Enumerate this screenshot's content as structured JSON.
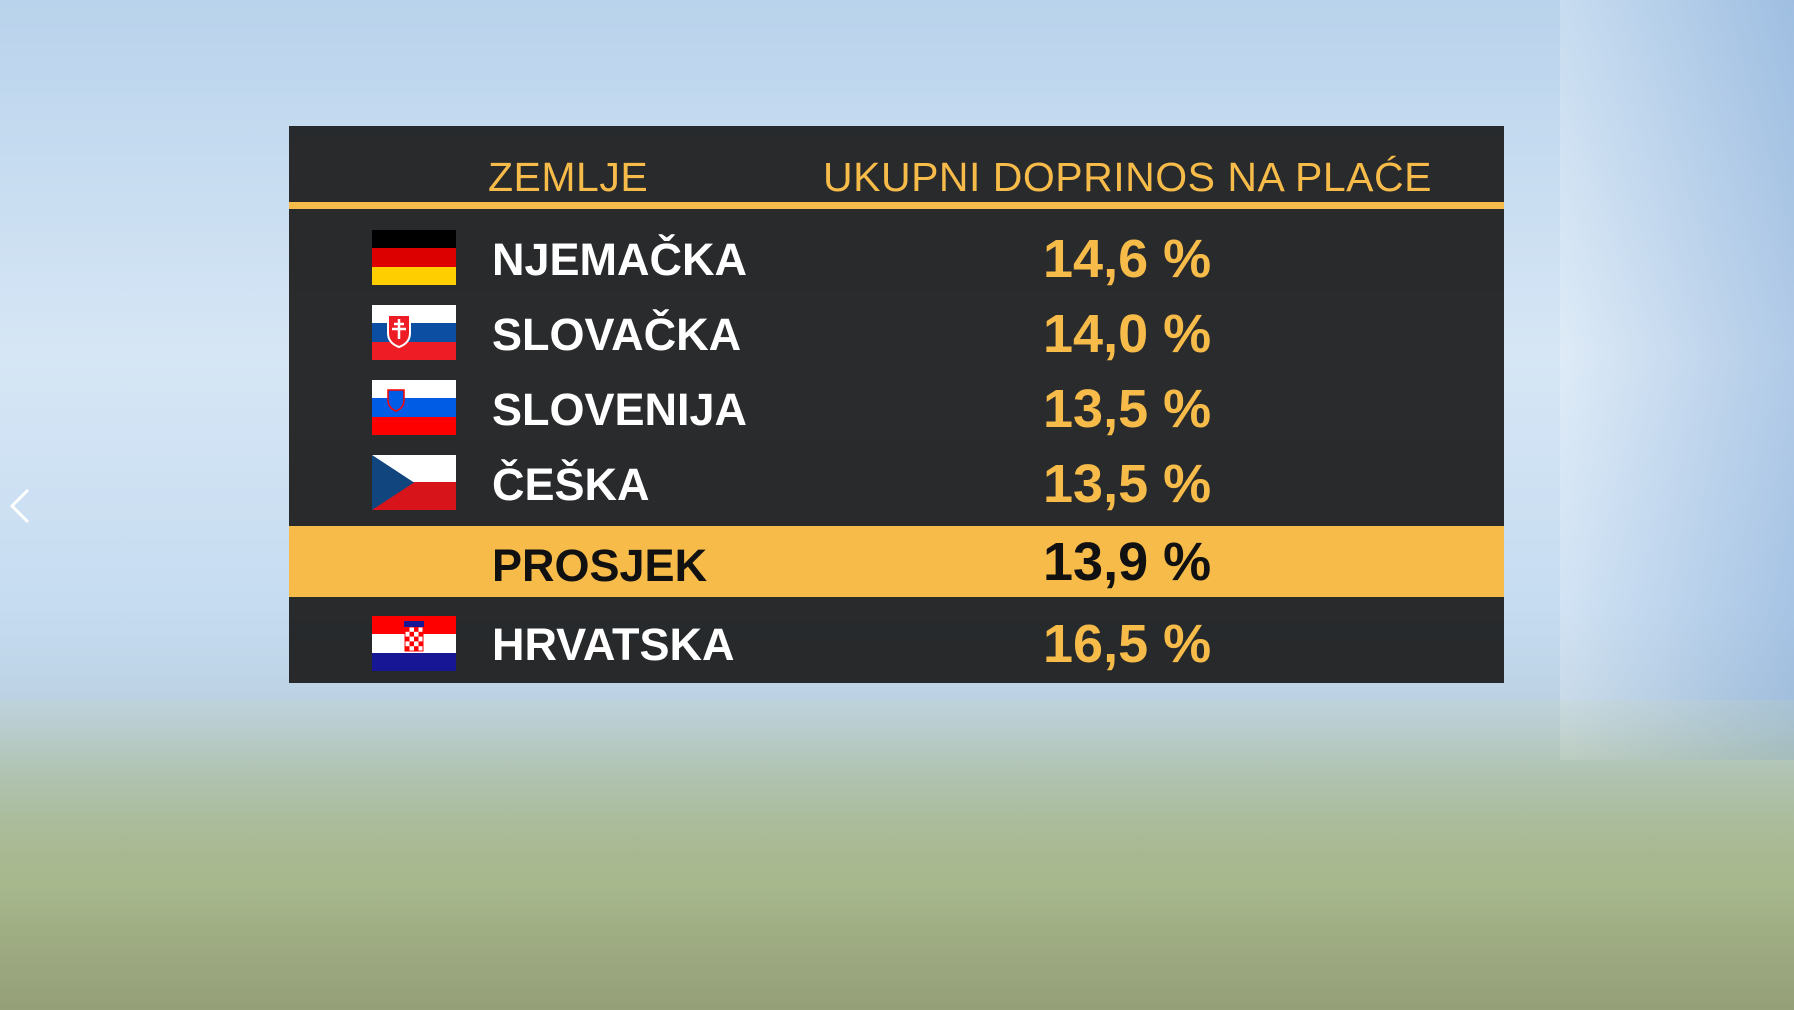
{
  "header": {
    "country": "ZEMLJE",
    "contribution": "UKUPNI DOPRINOS NA PLAĆE"
  },
  "rows": [
    {
      "country": "NJEMAČKA",
      "value": "14,6 %"
    },
    {
      "country": "SLOVAČKA",
      "value": "14,0 %"
    },
    {
      "country": "SLOVENIJA",
      "value": "13,5 %"
    },
    {
      "country": "ČEŠKA",
      "value": "13,5 %"
    }
  ],
  "average": {
    "label": "PROSJEK",
    "value": "13,9 %"
  },
  "highlight": {
    "country": "HRVATSKA",
    "value": "16,5 %"
  }
}
